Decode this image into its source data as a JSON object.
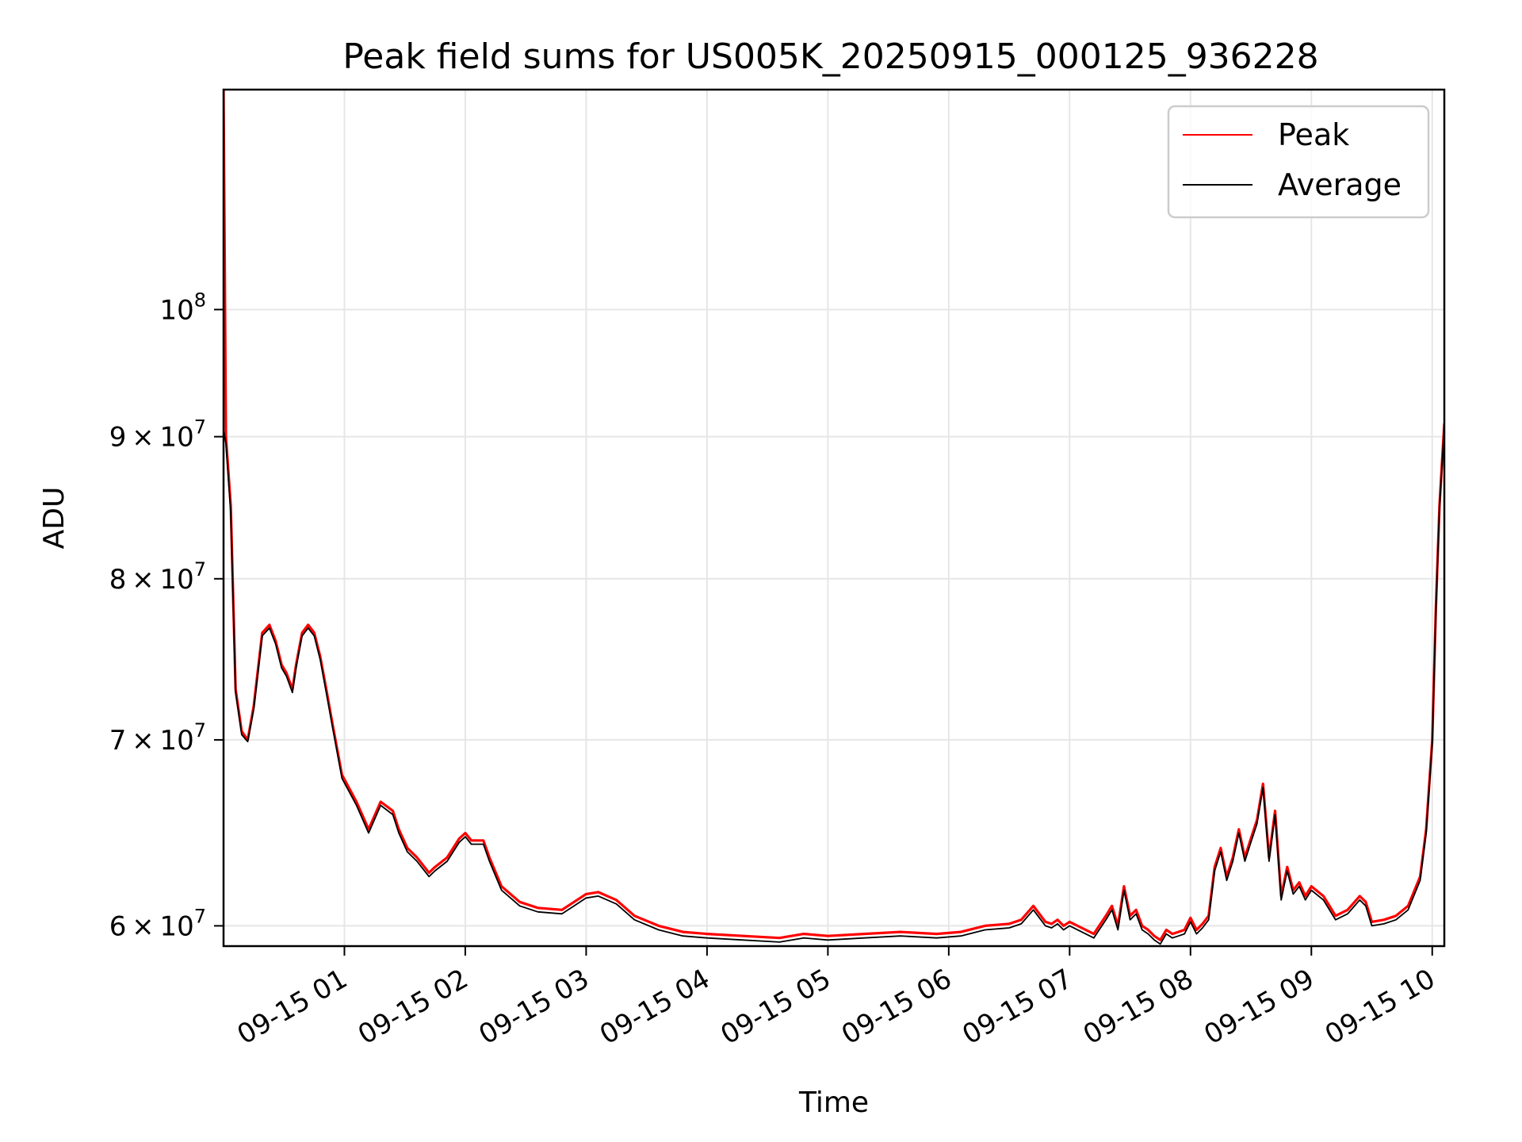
{
  "chart_data": {
    "type": "line",
    "title": "Peak field sums for US005K_20250915_000125_936228",
    "xlabel": "Time",
    "ylabel": "ADU",
    "yscale": "log",
    "grid": true,
    "legend_position": "top-right",
    "x_axis": {
      "min_hours": 0.0,
      "max_hours": 10.1,
      "tick_hours": [
        1,
        2,
        3,
        4,
        5,
        6,
        7,
        8,
        9,
        10
      ],
      "tick_labels": [
        "09-15 01",
        "09-15 02",
        "09-15 03",
        "09-15 04",
        "09-15 05",
        "09-15 06",
        "09-15 07",
        "09-15 08",
        "09-15 09",
        "09-15 10"
      ]
    },
    "y_axis": {
      "min": 59000000,
      "max": 120000000,
      "ticks": [
        {
          "value": 60000000,
          "mantissa": "6",
          "exponent": "7",
          "label": "6×10^7"
        },
        {
          "value": 70000000,
          "mantissa": "7",
          "exponent": "7",
          "label": "7×10^7"
        },
        {
          "value": 80000000,
          "mantissa": "8",
          "exponent": "7",
          "label": "8×10^7"
        },
        {
          "value": 90000000,
          "mantissa": "9",
          "exponent": "7",
          "label": "9×10^7"
        },
        {
          "value": 100000000,
          "mantissa": "",
          "exponent": "8",
          "label": "10^8"
        }
      ]
    },
    "series": [
      {
        "name": "Peak",
        "color": "#ff0000",
        "x": [
          0.0,
          0.02,
          0.06,
          0.1,
          0.15,
          0.2,
          0.25,
          0.32,
          0.38,
          0.43,
          0.48,
          0.52,
          0.57,
          0.6,
          0.65,
          0.7,
          0.75,
          0.8,
          0.85,
          0.9,
          0.98,
          1.02,
          1.1,
          1.2,
          1.3,
          1.4,
          1.45,
          1.52,
          1.6,
          1.7,
          1.75,
          1.85,
          1.95,
          2.0,
          2.05,
          2.15,
          2.2,
          2.3,
          2.45,
          2.6,
          2.8,
          2.9,
          3.0,
          3.1,
          3.25,
          3.4,
          3.6,
          3.8,
          4.0,
          4.3,
          4.6,
          4.8,
          5.0,
          5.3,
          5.6,
          5.9,
          6.1,
          6.3,
          6.5,
          6.6,
          6.7,
          6.8,
          6.85,
          6.9,
          6.95,
          7.0,
          7.1,
          7.2,
          7.3,
          7.35,
          7.4,
          7.45,
          7.5,
          7.55,
          7.6,
          7.65,
          7.7,
          7.75,
          7.8,
          7.85,
          7.9,
          7.95,
          8.0,
          8.05,
          8.1,
          8.15,
          8.2,
          8.25,
          8.3,
          8.35,
          8.4,
          8.45,
          8.5,
          8.55,
          8.6,
          8.65,
          8.7,
          8.75,
          8.8,
          8.85,
          8.9,
          8.95,
          9.0,
          9.1,
          9.2,
          9.3,
          9.4,
          9.45,
          9.5,
          9.6,
          9.7,
          9.8,
          9.9,
          9.95,
          10.0,
          10.03,
          10.06,
          10.1
        ],
        "values": [
          120000000,
          90000000,
          85000000,
          73000000,
          70500000,
          70000000,
          72000000,
          76500000,
          77000000,
          76000000,
          74500000,
          74000000,
          73000000,
          74500000,
          76500000,
          77000000,
          76500000,
          75000000,
          73000000,
          71000000,
          68000000,
          67500000,
          66500000,
          65000000,
          66500000,
          66000000,
          65000000,
          64000000,
          63500000,
          62700000,
          63000000,
          63500000,
          64500000,
          64800000,
          64400000,
          64400000,
          63500000,
          62000000,
          61200000,
          60900000,
          60800000,
          61200000,
          61600000,
          61700000,
          61300000,
          60500000,
          60000000,
          59700000,
          59600000,
          59500000,
          59400000,
          59600000,
          59500000,
          59600000,
          59700000,
          59600000,
          59700000,
          60000000,
          60100000,
          60300000,
          61000000,
          60200000,
          60100000,
          60300000,
          60000000,
          60200000,
          59900000,
          59600000,
          60500000,
          61000000,
          60000000,
          62000000,
          60500000,
          60800000,
          60000000,
          59800000,
          59500000,
          59300000,
          59800000,
          59600000,
          59700000,
          59800000,
          60400000,
          59800000,
          60100000,
          60500000,
          63000000,
          64000000,
          62500000,
          63500000,
          65000000,
          63500000,
          64500000,
          65500000,
          67500000,
          63500000,
          66000000,
          61500000,
          63000000,
          61800000,
          62200000,
          61500000,
          62000000,
          61500000,
          60500000,
          60800000,
          61500000,
          61200000,
          60200000,
          60300000,
          60500000,
          61000000,
          62500000,
          65000000,
          70000000,
          78000000,
          85000000,
          91000000
        ]
      },
      {
        "name": "Average",
        "color": "#000000",
        "x": [
          0.0,
          0.02,
          0.06,
          0.1,
          0.15,
          0.2,
          0.25,
          0.32,
          0.38,
          0.43,
          0.48,
          0.52,
          0.57,
          0.6,
          0.65,
          0.7,
          0.75,
          0.8,
          0.85,
          0.9,
          0.98,
          1.02,
          1.1,
          1.2,
          1.3,
          1.4,
          1.45,
          1.52,
          1.6,
          1.7,
          1.75,
          1.85,
          1.95,
          2.0,
          2.05,
          2.15,
          2.2,
          2.3,
          2.45,
          2.6,
          2.8,
          2.9,
          3.0,
          3.1,
          3.25,
          3.4,
          3.6,
          3.8,
          4.0,
          4.3,
          4.6,
          4.8,
          5.0,
          5.3,
          5.6,
          5.9,
          6.1,
          6.3,
          6.5,
          6.6,
          6.7,
          6.8,
          6.85,
          6.9,
          6.95,
          7.0,
          7.1,
          7.2,
          7.3,
          7.35,
          7.4,
          7.45,
          7.5,
          7.55,
          7.6,
          7.65,
          7.7,
          7.75,
          7.8,
          7.85,
          7.9,
          7.95,
          8.0,
          8.05,
          8.1,
          8.15,
          8.2,
          8.25,
          8.3,
          8.35,
          8.4,
          8.45,
          8.5,
          8.55,
          8.6,
          8.65,
          8.7,
          8.75,
          8.8,
          8.85,
          8.9,
          8.95,
          9.0,
          9.1,
          9.2,
          9.3,
          9.4,
          9.45,
          9.5,
          9.6,
          9.7,
          9.8,
          9.9,
          9.95,
          10.0,
          10.03,
          10.06,
          10.1
        ],
        "values": [
          90500000,
          89500000,
          84500000,
          72800000,
          70300000,
          69900000,
          71800000,
          76300000,
          76800000,
          75800000,
          74300000,
          73800000,
          72800000,
          74300000,
          76300000,
          76800000,
          76300000,
          74800000,
          72800000,
          70800000,
          67800000,
          67300000,
          66300000,
          64800000,
          66300000,
          65800000,
          64800000,
          63800000,
          63300000,
          62500000,
          62800000,
          63300000,
          64300000,
          64600000,
          64200000,
          64200000,
          63300000,
          61800000,
          61000000,
          60700000,
          60600000,
          61000000,
          61400000,
          61500000,
          61100000,
          60300000,
          59800000,
          59500000,
          59400000,
          59300000,
          59200000,
          59400000,
          59300000,
          59400000,
          59500000,
          59400000,
          59500000,
          59800000,
          59900000,
          60100000,
          60800000,
          60000000,
          59900000,
          60100000,
          59800000,
          60000000,
          59700000,
          59400000,
          60300000,
          60800000,
          59800000,
          61800000,
          60300000,
          60600000,
          59800000,
          59600000,
          59300000,
          59100000,
          59600000,
          59400000,
          59500000,
          59600000,
          60200000,
          59600000,
          59900000,
          60300000,
          62800000,
          63800000,
          62300000,
          63300000,
          64800000,
          63300000,
          64300000,
          65300000,
          67300000,
          63300000,
          65800000,
          61300000,
          62800000,
          61600000,
          62000000,
          61300000,
          61800000,
          61300000,
          60300000,
          60600000,
          61300000,
          61000000,
          60000000,
          60100000,
          60300000,
          60800000,
          62300000,
          64800000,
          69800000,
          77800000,
          84800000,
          90800000
        ]
      }
    ]
  }
}
